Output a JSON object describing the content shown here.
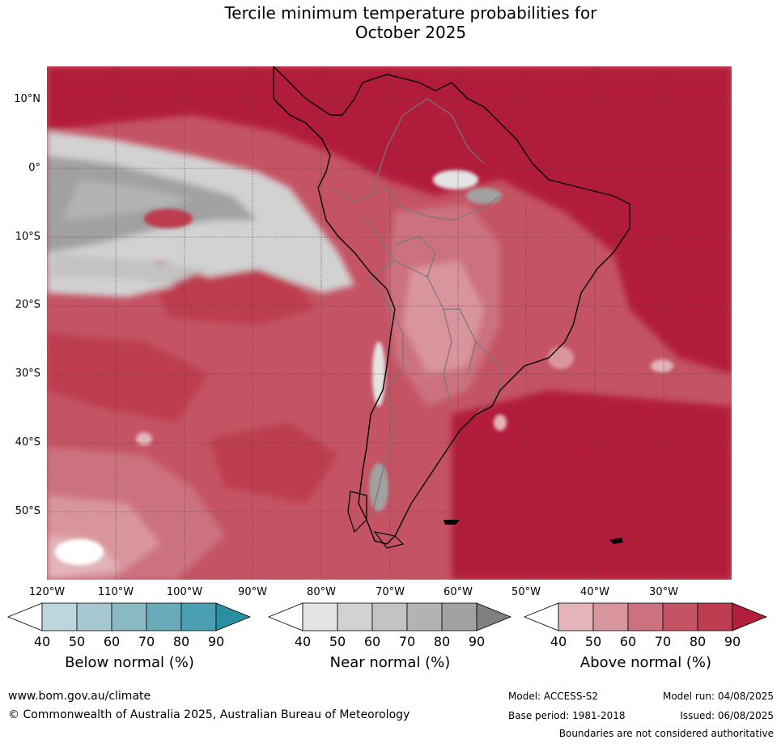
{
  "title": {
    "line1": "Tercile minimum temperature probabilities for",
    "line2": "October 2025"
  },
  "map": {
    "region": "South America",
    "latitude_labels": [
      "10°N",
      "0°",
      "10°S",
      "20°S",
      "30°S",
      "40°S",
      "50°S"
    ],
    "longitude_labels": [
      "120°W",
      "110°W",
      "100°W",
      "90°W",
      "80°W",
      "70°W",
      "60°W",
      "50°W",
      "40°W",
      "30°W"
    ]
  },
  "legends": [
    {
      "label": "Below normal (%)",
      "ticks": [
        "40",
        "50",
        "60",
        "70",
        "80",
        "90"
      ],
      "colors": [
        "#ffffff",
        "#bcd6dd",
        "#a6c8d0",
        "#8ab9c4",
        "#6aabba",
        "#4a9fb0",
        "#2a8fa0"
      ]
    },
    {
      "label": "Near normal (%)",
      "ticks": [
        "40",
        "50",
        "60",
        "70",
        "80",
        "90"
      ],
      "colors": [
        "#ffffff",
        "#e4e4e4",
        "#d2d2d2",
        "#c3c3c3",
        "#b3b3b3",
        "#a1a1a1",
        "#808080"
      ]
    },
    {
      "label": "Above normal (%)",
      "ticks": [
        "40",
        "50",
        "60",
        "70",
        "80",
        "90"
      ],
      "colors": [
        "#ffffff",
        "#e3b4b9",
        "#d9959d",
        "#cc727f",
        "#c45463",
        "#bd3c4f",
        "#b21f3b"
      ]
    }
  ],
  "footer": {
    "website": "www.bom.gov.au/climate",
    "copyright": "© Commonwealth of Australia 2025, Australian Bureau of Meteorology",
    "model": "Model: ACCESS-S2",
    "base_period": "Base period: 1981-2018",
    "model_run": "Model run: 04/08/2025",
    "issued": "Issued: 06/08/2025",
    "disclaimer": "Boundaries are not considered authoritative"
  }
}
